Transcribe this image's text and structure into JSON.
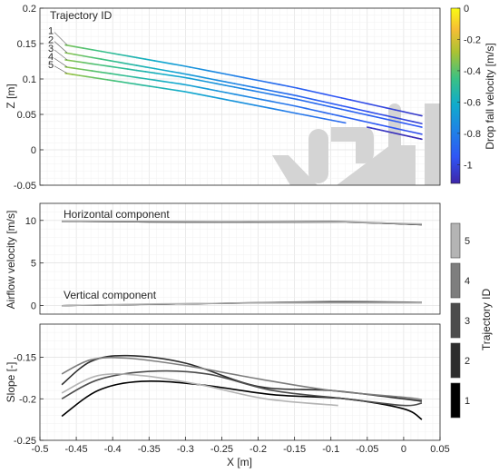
{
  "chart_data": [
    {
      "type": "line",
      "ylabel": "Z [m]",
      "ylim": [
        -0.05,
        0.2
      ],
      "yticks": [
        -0.05,
        0,
        0.05,
        0.1,
        0.15,
        0.2
      ],
      "ytick_labels": [
        "-0.05",
        "0",
        "0.05",
        "0.1",
        "0.15",
        "0.2"
      ],
      "xlim": [
        -0.5,
        0.05
      ],
      "grid": true,
      "annotation": "Trajectory ID",
      "trajectory_labels": [
        "1",
        "2",
        "3",
        "4",
        "5"
      ],
      "colorbar": {
        "label": "Drop fall velocity [m/s]",
        "range": [
          -1.12,
          0
        ],
        "ticks": [
          0,
          -0.2,
          -0.4,
          -0.6,
          -0.8,
          -1
        ],
        "tick_labels": [
          "0",
          "-0.2",
          "-0.4",
          "-0.6",
          "-0.8",
          "-1"
        ],
        "colormap": "parula"
      },
      "series": [
        {
          "x": [
            -0.465,
            -0.3,
            -0.15,
            0.025
          ],
          "z": [
            0.148,
            0.118,
            0.088,
            0.048
          ],
          "v": [
            -0.35,
            -0.7,
            -0.9,
            -1.05
          ]
        },
        {
          "x": [
            -0.465,
            -0.3,
            -0.15,
            0.025
          ],
          "z": [
            0.137,
            0.107,
            0.077,
            0.037
          ],
          "v": [
            -0.33,
            -0.68,
            -0.88,
            -1.03
          ]
        },
        {
          "x": [
            -0.465,
            -0.3,
            -0.15,
            0.025
          ],
          "z": [
            0.127,
            0.102,
            0.072,
            0.032
          ],
          "v": [
            -0.33,
            -0.66,
            -0.86,
            -0.95
          ]
        },
        {
          "x": [
            -0.465,
            -0.3,
            -0.15,
            0.025
          ],
          "z": [
            0.117,
            0.092,
            0.062,
            0.022
          ],
          "v": [
            -0.32,
            -0.65,
            -0.85,
            -0.98
          ]
        },
        {
          "x": [
            -0.465,
            -0.3,
            -0.15,
            -0.08
          ],
          "z": [
            0.108,
            0.082,
            0.052,
            0.038
          ],
          "v": [
            -0.3,
            -0.62,
            -0.82,
            -0.88
          ]
        },
        {
          "x": [
            -0.05,
            0.025
          ],
          "z": [
            0.032,
            0.015
          ],
          "v": [
            -1.05,
            -1.1
          ]
        }
      ]
    },
    {
      "type": "line",
      "ylabel": "Airflow velocity [m/s]",
      "ylim": [
        -1,
        12
      ],
      "yticks": [
        0,
        5,
        10
      ],
      "ytick_labels": [
        "0",
        "5",
        "10"
      ],
      "xlim": [
        -0.5,
        0.05
      ],
      "grid": true,
      "annotations": [
        "Horizontal component",
        "Vertical component"
      ],
      "colorbar": {
        "label": "Trajectory ID",
        "tick_labels": [
          "1",
          "2",
          "3",
          "4",
          "5"
        ],
        "colors": [
          "#000000",
          "#2d2d2d",
          "#4c4c4c",
          "#7e7e7e",
          "#b4b4b4"
        ]
      },
      "series": [
        {
          "name": "1",
          "x": [
            -0.47,
            -0.3,
            -0.1,
            0.025
          ],
          "horizontal": [
            9.9,
            9.8,
            9.8,
            9.5
          ],
          "vertical": [
            0.0,
            0.2,
            0.4,
            0.3
          ]
        },
        {
          "name": "2",
          "x": [
            -0.47,
            -0.3,
            -0.1,
            0.025
          ],
          "horizontal": [
            9.9,
            9.8,
            9.8,
            9.5
          ],
          "vertical": [
            0.0,
            0.2,
            0.4,
            0.35
          ]
        },
        {
          "name": "3",
          "x": [
            -0.47,
            -0.3,
            -0.1,
            0.025
          ],
          "horizontal": [
            9.9,
            9.85,
            9.8,
            9.5
          ],
          "vertical": [
            0.0,
            0.2,
            0.45,
            0.3
          ]
        },
        {
          "name": "4",
          "x": [
            -0.47,
            -0.3,
            -0.1,
            0.025
          ],
          "horizontal": [
            9.95,
            9.85,
            9.9,
            9.5
          ],
          "vertical": [
            0.0,
            0.2,
            0.5,
            0.4
          ]
        },
        {
          "name": "5",
          "x": [
            -0.47,
            -0.3,
            -0.1,
            0.025
          ],
          "horizontal": [
            9.95,
            9.9,
            9.8,
            9.6
          ],
          "vertical": [
            0.0,
            0.25,
            0.3,
            0.3
          ]
        }
      ]
    },
    {
      "type": "line",
      "xlabel": "X [m]",
      "ylabel": "Slope [-]",
      "ylim": [
        -0.25,
        -0.11
      ],
      "yticks": [
        -0.25,
        -0.2,
        -0.15
      ],
      "ytick_labels": [
        "-0.25",
        "-0.2",
        "-0.15"
      ],
      "xlim": [
        -0.5,
        0.05
      ],
      "xticks": [
        -0.5,
        -0.45,
        -0.4,
        -0.35,
        -0.3,
        -0.25,
        -0.2,
        -0.15,
        -0.1,
        -0.05,
        0,
        0.05
      ],
      "xtick_labels": [
        "-0.5",
        "-0.45",
        "-0.4",
        "-0.35",
        "-0.3",
        "-0.25",
        "-0.2",
        "-0.15",
        "-0.1",
        "-0.05",
        "0",
        "0.05"
      ],
      "grid": true,
      "series": [
        {
          "name": "1",
          "x": [
            -0.47,
            -0.42,
            -0.36,
            -0.28,
            -0.18,
            -0.08,
            0.0,
            0.025
          ],
          "y": [
            -0.221,
            -0.19,
            -0.179,
            -0.183,
            -0.195,
            -0.2,
            -0.212,
            -0.225
          ]
        },
        {
          "name": "2",
          "x": [
            -0.47,
            -0.43,
            -0.38,
            -0.3,
            -0.2,
            -0.1,
            0.0,
            0.025
          ],
          "y": [
            -0.183,
            -0.155,
            -0.148,
            -0.157,
            -0.185,
            -0.19,
            -0.2,
            -0.203
          ]
        },
        {
          "name": "3",
          "x": [
            -0.47,
            -0.42,
            -0.35,
            -0.27,
            -0.18,
            -0.08,
            0.0,
            0.025
          ],
          "y": [
            -0.2,
            -0.177,
            -0.167,
            -0.17,
            -0.19,
            -0.2,
            -0.208,
            -0.205
          ]
        },
        {
          "name": "4",
          "x": [
            -0.47,
            -0.43,
            -0.38,
            -0.3,
            -0.2,
            -0.1,
            0.0,
            0.025
          ],
          "y": [
            -0.17,
            -0.153,
            -0.151,
            -0.16,
            -0.176,
            -0.19,
            -0.198,
            -0.201
          ]
        },
        {
          "name": "5",
          "x": [
            -0.47,
            -0.42,
            -0.36,
            -0.28,
            -0.19,
            -0.09
          ],
          "y": [
            -0.193,
            -0.172,
            -0.172,
            -0.183,
            -0.2,
            -0.208
          ]
        }
      ]
    }
  ]
}
